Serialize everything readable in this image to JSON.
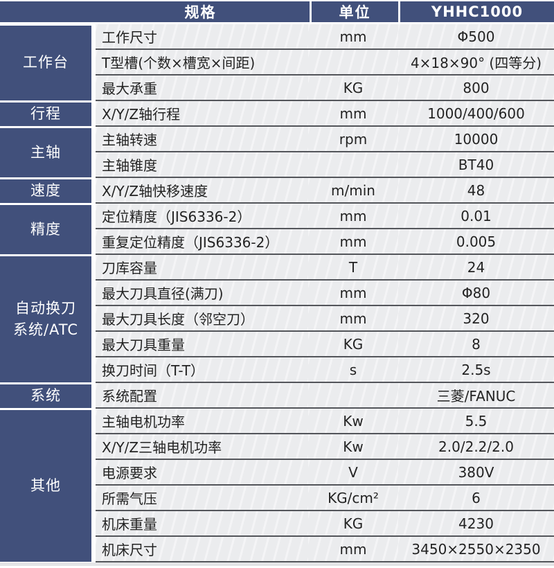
{
  "table": {
    "header": {
      "spec": "规格",
      "unit": "单位",
      "model": "YHHC1000"
    },
    "groups": [
      {
        "category": "工作台",
        "rows": [
          {
            "name": "工作尺寸",
            "unit": "mm",
            "value": "Φ500"
          },
          {
            "name": "T型槽(个数×槽宽×间距)",
            "unit": "",
            "value": "4×18×90° (四等分)"
          },
          {
            "name": "最大承重",
            "unit": "KG",
            "value": "800"
          }
        ]
      },
      {
        "category": "行程",
        "rows": [
          {
            "name": "X/Y/Z轴行程",
            "unit": "mm",
            "value": "1000/400/600"
          }
        ]
      },
      {
        "category": "主轴",
        "rows": [
          {
            "name": "主轴转速",
            "unit": "rpm",
            "value": "10000"
          },
          {
            "name": "主轴锥度",
            "unit": "",
            "value": "BT40"
          }
        ]
      },
      {
        "category": "速度",
        "rows": [
          {
            "name": "X/Y/Z轴快移速度",
            "unit": "m/min",
            "value": "48"
          }
        ]
      },
      {
        "category": "精度",
        "rows": [
          {
            "name": "定位精度（JIS6336-2）",
            "unit": "mm",
            "value": "0.01"
          },
          {
            "name": "重复定位精度（JIS6336-2）",
            "unit": "mm",
            "value": "0.005"
          }
        ]
      },
      {
        "category": "自动换刀\n系统/ATC",
        "rows": [
          {
            "name": "刀库容量",
            "unit": "T",
            "value": "24"
          },
          {
            "name": "最大刀具直径(满刀)",
            "unit": "mm",
            "value": "Φ80"
          },
          {
            "name": "最大刀具长度（邻空刀）",
            "unit": "mm",
            "value": "320"
          },
          {
            "name": "最大刀具重量",
            "unit": "KG",
            "value": "8"
          },
          {
            "name": "换刀时间（T-T）",
            "unit": "s",
            "value": "2.5s"
          }
        ]
      },
      {
        "category": "系统",
        "rows": [
          {
            "name": "系统配置",
            "unit": "",
            "value": "三菱/FANUC"
          }
        ]
      },
      {
        "category": "其他",
        "rows": [
          {
            "name": "主轴电机功率",
            "unit": "Kw",
            "value": "5.5"
          },
          {
            "name": "X/Y/Z三轴电机功率",
            "unit": "Kw",
            "value": "2.0/2.2/2.0"
          },
          {
            "name": "电源要求",
            "unit": "V",
            "value": "380V"
          },
          {
            "name": "所需气压",
            "unit": "KG/cm²",
            "value": "6"
          },
          {
            "name": "机床重量",
            "unit": "KG",
            "value": "4230"
          },
          {
            "name": "机床尺寸",
            "unit": "mm",
            "value": "3450×2550×2350"
          }
        ]
      }
    ],
    "colors": {
      "header_navy": "#41507b",
      "category_navy": "#41507b",
      "row_background": "#ebecee",
      "separator_line": "#53555a",
      "text": "#232323",
      "header_text": "#ffffff"
    }
  }
}
